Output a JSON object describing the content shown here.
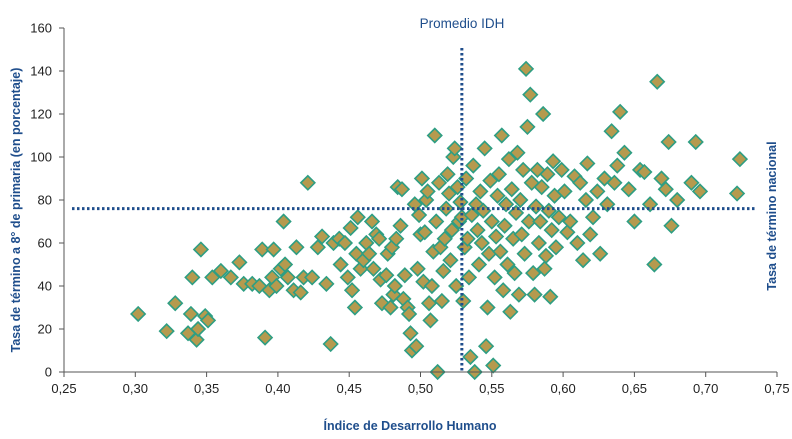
{
  "chart_data": {
    "type": "scatter",
    "title": "",
    "xlabel": "Índice de Desarrollo Humano",
    "ylabel": "Tasa de término a 8° de primaria (en porcentaje)",
    "xlim": [
      0.25,
      0.75
    ],
    "ylim": [
      0,
      160
    ],
    "x_ticks": [
      "0,25",
      "0,30",
      "0,35",
      "0,40",
      "0,45",
      "0,50",
      "0,55",
      "0,60",
      "0,65",
      "0,70",
      "0,75"
    ],
    "x_tick_values": [
      0.25,
      0.3,
      0.35,
      0.4,
      0.45,
      0.5,
      0.55,
      0.6,
      0.65,
      0.7,
      0.75
    ],
    "y_ticks": [
      "0",
      "20",
      "40",
      "60",
      "80",
      "100",
      "120",
      "140",
      "160"
    ],
    "y_tick_values": [
      0,
      20,
      40,
      60,
      80,
      100,
      120,
      140,
      160
    ],
    "grid": false,
    "reference_lines": {
      "vertical": {
        "x": 0.529,
        "label": "Promedio IDH",
        "style": "dotted"
      },
      "horizontal": {
        "y": 76,
        "label": "Tasa de término nacional",
        "style": "dotted"
      }
    },
    "marker": {
      "shape": "diamond",
      "fill": "#b59a4e",
      "stroke": "#2e9e83"
    },
    "line_color": "#1f4e8c",
    "points": [
      [
        0.302,
        27
      ],
      [
        0.322,
        19
      ],
      [
        0.328,
        32
      ],
      [
        0.337,
        18
      ],
      [
        0.339,
        27
      ],
      [
        0.34,
        44
      ],
      [
        0.343,
        15
      ],
      [
        0.344,
        20
      ],
      [
        0.346,
        57
      ],
      [
        0.349,
        26
      ],
      [
        0.351,
        24
      ],
      [
        0.354,
        44
      ],
      [
        0.36,
        47
      ],
      [
        0.367,
        44
      ],
      [
        0.373,
        51
      ],
      [
        0.376,
        41
      ],
      [
        0.382,
        41
      ],
      [
        0.387,
        40
      ],
      [
        0.389,
        57
      ],
      [
        0.391,
        16
      ],
      [
        0.394,
        38
      ],
      [
        0.396,
        44
      ],
      [
        0.397,
        57
      ],
      [
        0.399,
        40
      ],
      [
        0.402,
        48
      ],
      [
        0.404,
        70
      ],
      [
        0.405,
        50
      ],
      [
        0.407,
        44
      ],
      [
        0.411,
        38
      ],
      [
        0.413,
        58
      ],
      [
        0.416,
        37
      ],
      [
        0.418,
        44
      ],
      [
        0.421,
        88
      ],
      [
        0.424,
        44
      ],
      [
        0.428,
        58
      ],
      [
        0.431,
        63
      ],
      [
        0.434,
        41
      ],
      [
        0.437,
        13
      ],
      [
        0.439,
        60
      ],
      [
        0.443,
        62
      ],
      [
        0.444,
        50
      ],
      [
        0.447,
        60
      ],
      [
        0.449,
        44
      ],
      [
        0.451,
        67
      ],
      [
        0.452,
        38
      ],
      [
        0.454,
        30
      ],
      [
        0.455,
        55
      ],
      [
        0.456,
        72
      ],
      [
        0.458,
        48
      ],
      [
        0.46,
        52
      ],
      [
        0.462,
        60
      ],
      [
        0.464,
        55
      ],
      [
        0.466,
        70
      ],
      [
        0.467,
        48
      ],
      [
        0.469,
        64
      ],
      [
        0.471,
        62
      ],
      [
        0.472,
        43
      ],
      [
        0.473,
        32
      ],
      [
        0.476,
        45
      ],
      [
        0.477,
        55
      ],
      [
        0.479,
        30
      ],
      [
        0.48,
        58
      ],
      [
        0.481,
        36
      ],
      [
        0.482,
        40
      ],
      [
        0.483,
        62
      ],
      [
        0.484,
        86
      ],
      [
        0.486,
        68
      ],
      [
        0.487,
        85
      ],
      [
        0.488,
        34
      ],
      [
        0.489,
        45
      ],
      [
        0.491,
        30
      ],
      [
        0.492,
        27
      ],
      [
        0.493,
        18
      ],
      [
        0.494,
        10
      ],
      [
        0.496,
        78
      ],
      [
        0.497,
        12
      ],
      [
        0.498,
        48
      ],
      [
        0.499,
        73
      ],
      [
        0.5,
        64
      ],
      [
        0.501,
        90
      ],
      [
        0.502,
        42
      ],
      [
        0.503,
        65
      ],
      [
        0.504,
        80
      ],
      [
        0.505,
        84
      ],
      [
        0.506,
        32
      ],
      [
        0.507,
        24
      ],
      [
        0.508,
        40
      ],
      [
        0.509,
        56
      ],
      [
        0.51,
        110
      ],
      [
        0.511,
        70
      ],
      [
        0.512,
        0
      ],
      [
        0.513,
        88
      ],
      [
        0.514,
        58
      ],
      [
        0.515,
        33
      ],
      [
        0.516,
        47
      ],
      [
        0.517,
        62
      ],
      [
        0.518,
        76
      ],
      [
        0.519,
        92
      ],
      [
        0.52,
        83
      ],
      [
        0.521,
        52
      ],
      [
        0.522,
        66
      ],
      [
        0.523,
        100
      ],
      [
        0.524,
        104
      ],
      [
        0.525,
        40
      ],
      [
        0.526,
        86
      ],
      [
        0.527,
        70
      ],
      [
        0.528,
        79
      ],
      [
        0.529,
        72
      ],
      [
        0.53,
        33
      ],
      [
        0.531,
        58
      ],
      [
        0.532,
        90
      ],
      [
        0.533,
        62
      ],
      [
        0.534,
        44
      ],
      [
        0.535,
        7
      ],
      [
        0.536,
        73
      ],
      [
        0.537,
        96
      ],
      [
        0.538,
        0
      ],
      [
        0.539,
        78
      ],
      [
        0.54,
        66
      ],
      [
        0.541,
        50
      ],
      [
        0.542,
        84
      ],
      [
        0.543,
        60
      ],
      [
        0.544,
        75
      ],
      [
        0.545,
        104
      ],
      [
        0.546,
        12
      ],
      [
        0.547,
        30
      ],
      [
        0.548,
        55
      ],
      [
        0.549,
        89
      ],
      [
        0.55,
        70
      ],
      [
        0.551,
        3
      ],
      [
        0.552,
        44
      ],
      [
        0.553,
        63
      ],
      [
        0.554,
        82
      ],
      [
        0.555,
        92
      ],
      [
        0.556,
        56
      ],
      [
        0.557,
        110
      ],
      [
        0.558,
        38
      ],
      [
        0.559,
        68
      ],
      [
        0.56,
        78
      ],
      [
        0.561,
        50
      ],
      [
        0.562,
        99
      ],
      [
        0.563,
        28
      ],
      [
        0.564,
        85
      ],
      [
        0.565,
        62
      ],
      [
        0.566,
        46
      ],
      [
        0.567,
        74
      ],
      [
        0.568,
        102
      ],
      [
        0.569,
        36
      ],
      [
        0.57,
        80
      ],
      [
        0.571,
        64
      ],
      [
        0.572,
        94
      ],
      [
        0.573,
        55
      ],
      [
        0.574,
        141
      ],
      [
        0.575,
        114
      ],
      [
        0.576,
        70
      ],
      [
        0.577,
        129
      ],
      [
        0.578,
        88
      ],
      [
        0.579,
        46
      ],
      [
        0.58,
        36
      ],
      [
        0.581,
        77
      ],
      [
        0.582,
        94
      ],
      [
        0.583,
        60
      ],
      [
        0.584,
        70
      ],
      [
        0.585,
        86
      ],
      [
        0.586,
        120
      ],
      [
        0.587,
        48
      ],
      [
        0.588,
        54
      ],
      [
        0.589,
        92
      ],
      [
        0.59,
        75
      ],
      [
        0.591,
        35
      ],
      [
        0.592,
        66
      ],
      [
        0.593,
        98
      ],
      [
        0.594,
        82
      ],
      [
        0.595,
        58
      ],
      [
        0.597,
        72
      ],
      [
        0.599,
        94
      ],
      [
        0.601,
        84
      ],
      [
        0.603,
        65
      ],
      [
        0.605,
        70
      ],
      [
        0.608,
        91
      ],
      [
        0.61,
        60
      ],
      [
        0.612,
        88
      ],
      [
        0.614,
        52
      ],
      [
        0.616,
        80
      ],
      [
        0.617,
        97
      ],
      [
        0.619,
        64
      ],
      [
        0.621,
        72
      ],
      [
        0.624,
        84
      ],
      [
        0.626,
        55
      ],
      [
        0.629,
        90
      ],
      [
        0.631,
        78
      ],
      [
        0.634,
        112
      ],
      [
        0.636,
        88
      ],
      [
        0.638,
        96
      ],
      [
        0.64,
        121
      ],
      [
        0.643,
        102
      ],
      [
        0.646,
        85
      ],
      [
        0.65,
        70
      ],
      [
        0.654,
        94
      ],
      [
        0.657,
        93
      ],
      [
        0.661,
        78
      ],
      [
        0.664,
        50
      ],
      [
        0.666,
        135
      ],
      [
        0.669,
        90
      ],
      [
        0.672,
        85
      ],
      [
        0.674,
        107
      ],
      [
        0.676,
        68
      ],
      [
        0.68,
        80
      ],
      [
        0.69,
        88
      ],
      [
        0.693,
        107
      ],
      [
        0.696,
        84
      ],
      [
        0.722,
        83
      ],
      [
        0.724,
        99
      ]
    ]
  }
}
